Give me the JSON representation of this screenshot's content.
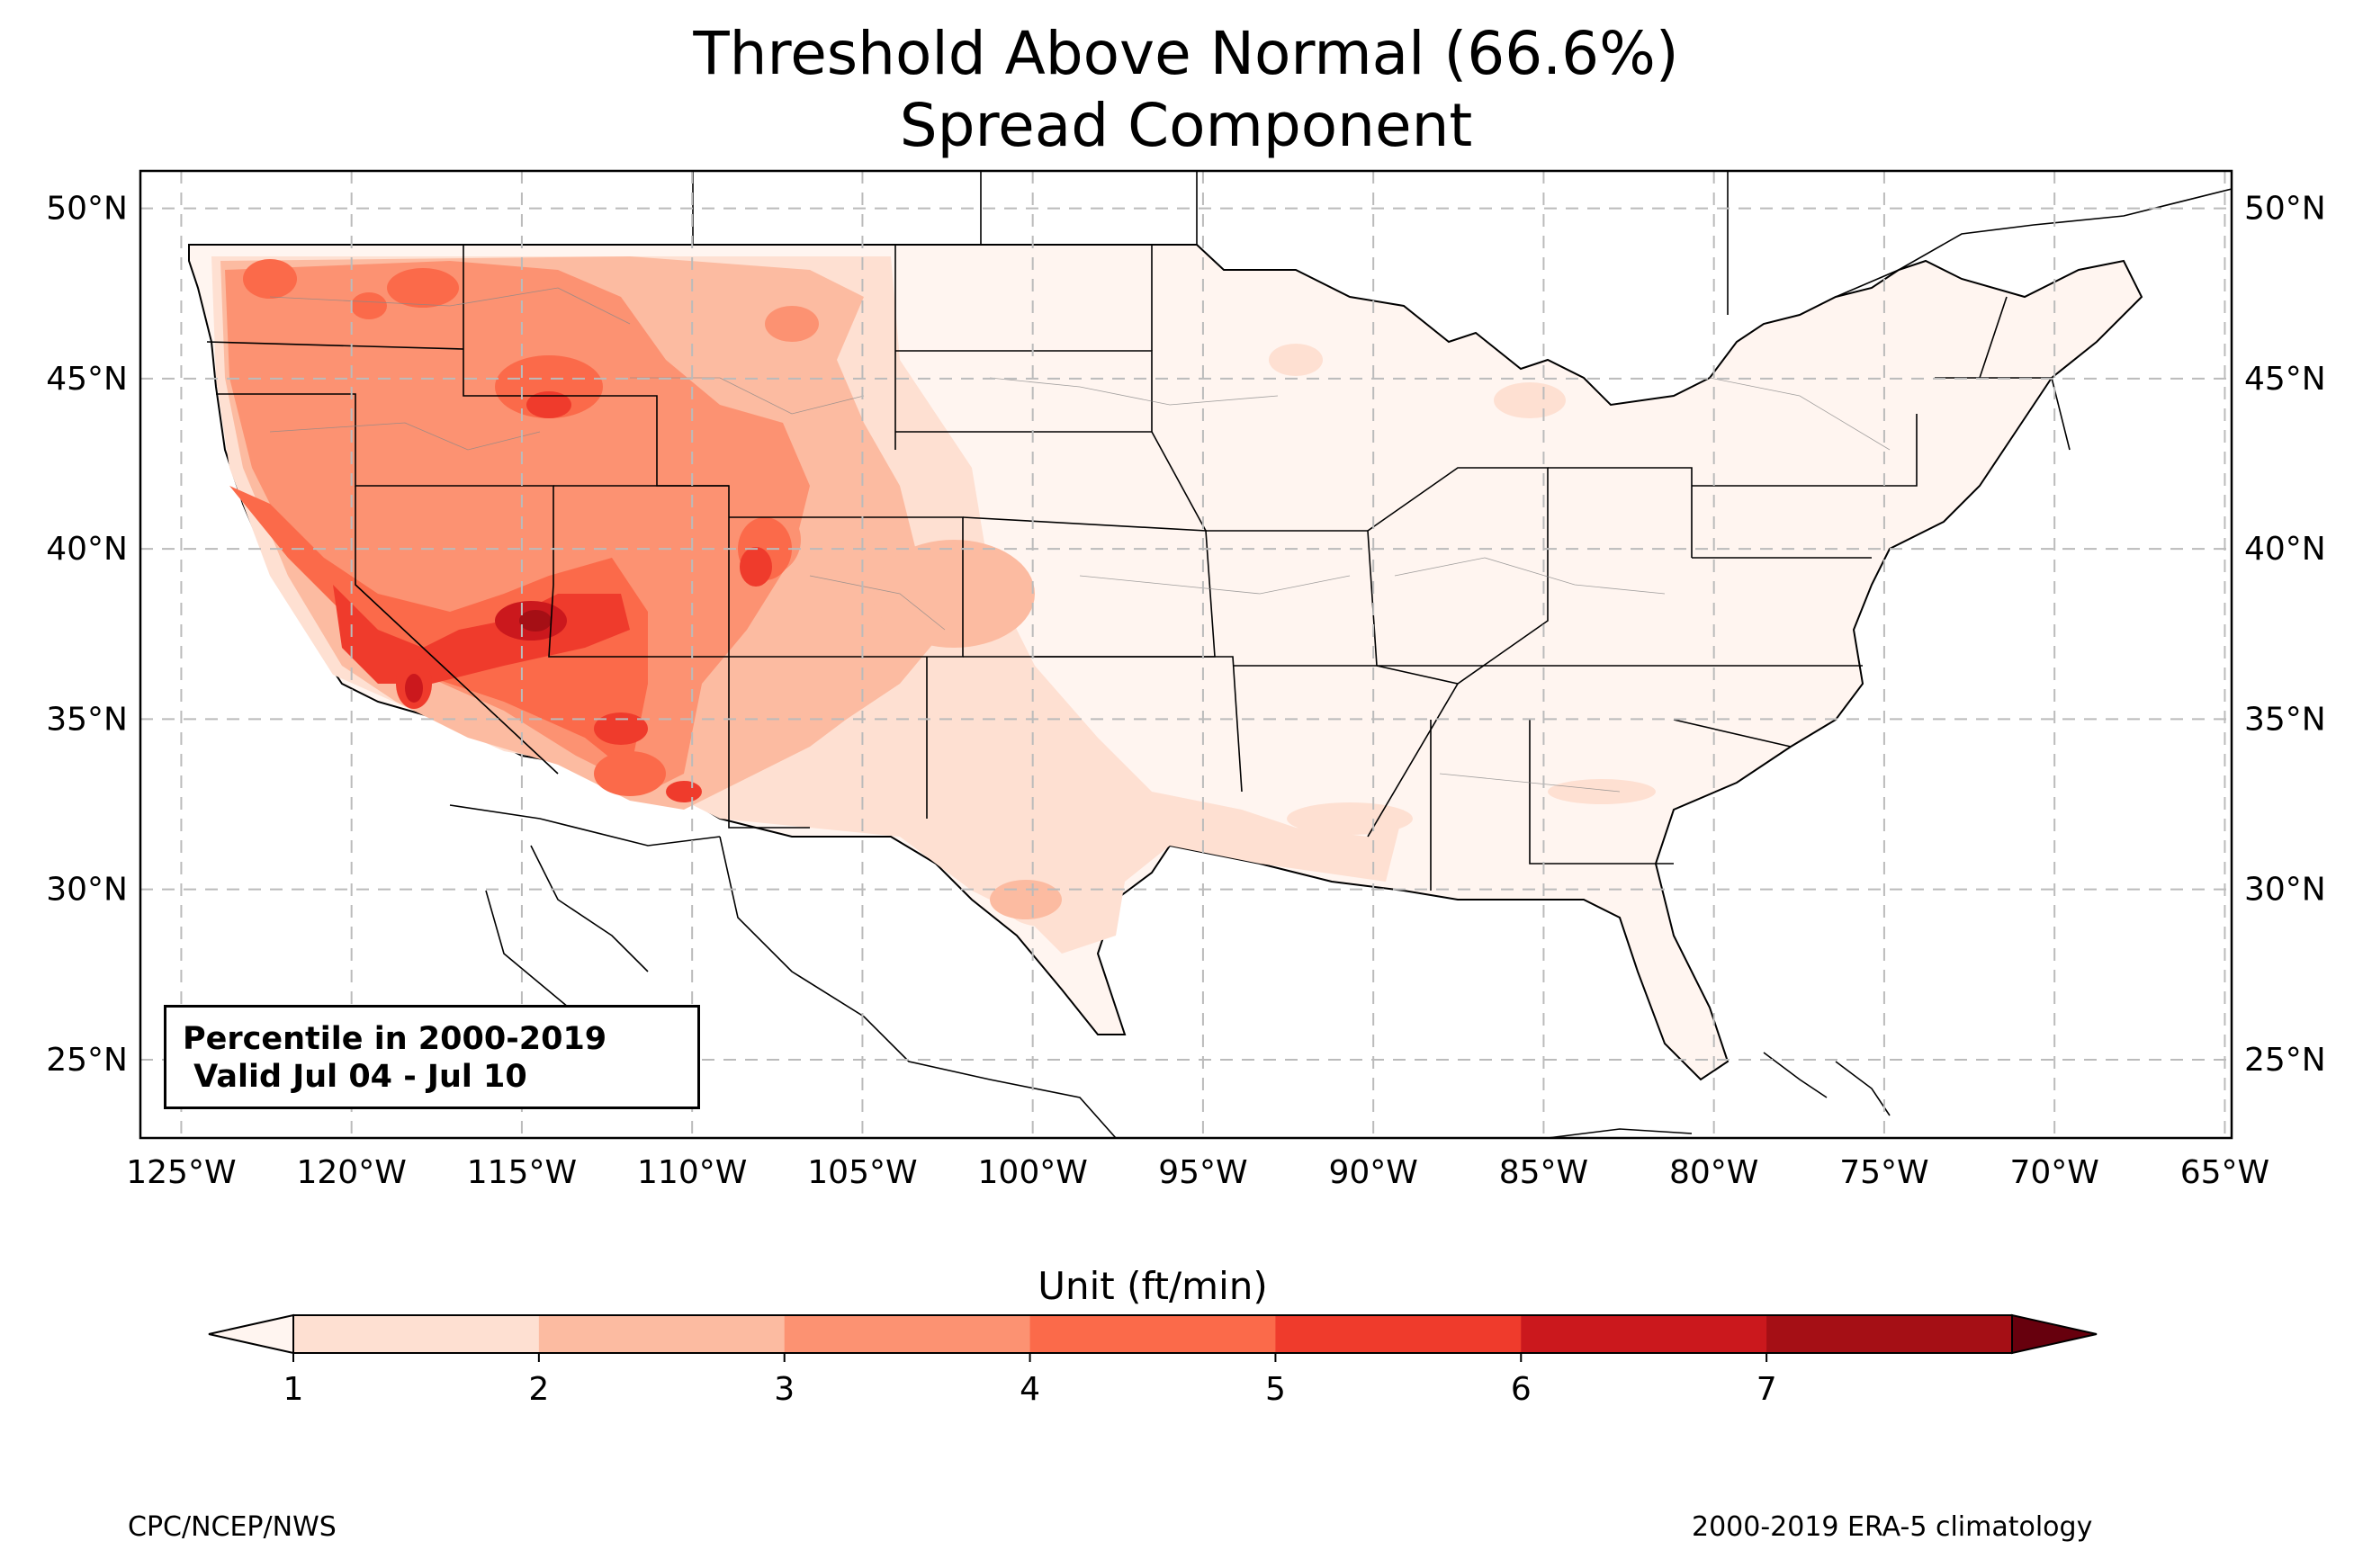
{
  "title": {
    "line1": "Threshold Above Normal (66.6%)",
    "line2": "Spread Component"
  },
  "axes": {
    "lat_labels": [
      "50°N",
      "45°N",
      "40°N",
      "35°N",
      "30°N",
      "25°N"
    ],
    "lon_labels": [
      "125°W",
      "120°W",
      "115°W",
      "110°W",
      "105°W",
      "100°W",
      "95°W",
      "90°W",
      "85°W",
      "80°W",
      "75°W",
      "70°W",
      "65°W"
    ],
    "lat_values": [
      50,
      45,
      40,
      35,
      30,
      25
    ],
    "lon_values": [
      -125,
      -120,
      -115,
      -110,
      -105,
      -100,
      -95,
      -90,
      -85,
      -80,
      -75,
      -70,
      -65
    ],
    "lon_range": [
      -126.2,
      -64.8
    ],
    "lat_range": [
      22.7,
      51.1
    ],
    "gridlines": true
  },
  "info_box": {
    "line1": "Percentile in 2000-2019",
    "line2": " Valid Jul 04 - Jul 10"
  },
  "colorbar": {
    "label": "Unit (ft/min)",
    "ticks": [
      "1",
      "2",
      "3",
      "4",
      "5",
      "6",
      "7"
    ],
    "colors": [
      "#fee0d2",
      "#fcbba1",
      "#fc9272",
      "#fb6a4a",
      "#ef3b2c",
      "#cb181d",
      "#a50f15"
    ],
    "under_color": "#fff5f0",
    "over_color": "#67000d",
    "extend": "both"
  },
  "footer": {
    "left": "CPC/NCEP/NWS",
    "right": "2000-2019 ERA-5 climatology"
  }
}
